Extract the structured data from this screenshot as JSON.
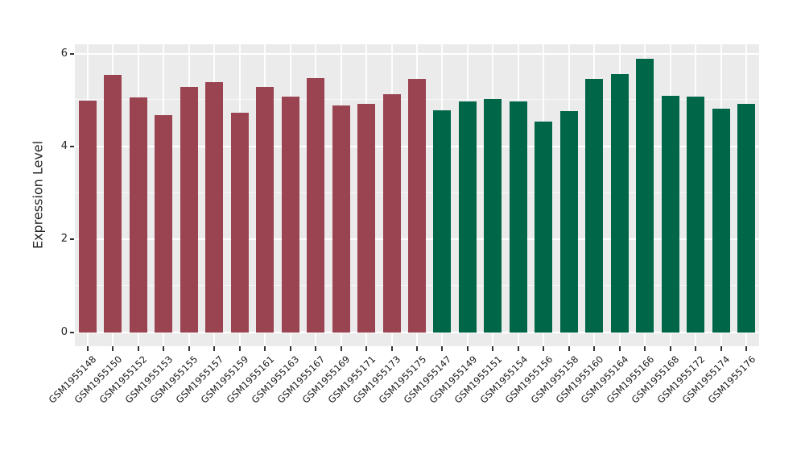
{
  "chart_data": {
    "type": "bar",
    "title": "",
    "xlabel": "",
    "ylabel": "Expression Level",
    "yticks": [
      0,
      2,
      4,
      6
    ],
    "yticks_minor": [
      1,
      3,
      5
    ],
    "ylim": [
      -0.3,
      6.2
    ],
    "grid": true,
    "legend": false,
    "panel_bg": "#EBEBEB",
    "gridline_color": "#FFFFFF",
    "group_colors": {
      "group1": "#9A4451",
      "group2": "#006648"
    },
    "bars": [
      {
        "label": "GSM1955148",
        "value": 4.98,
        "group": "group1"
      },
      {
        "label": "GSM1955150",
        "value": 5.54,
        "group": "group1"
      },
      {
        "label": "GSM1955152",
        "value": 5.06,
        "group": "group1"
      },
      {
        "label": "GSM1955153",
        "value": 4.68,
        "group": "group1"
      },
      {
        "label": "GSM1955155",
        "value": 5.28,
        "group": "group1"
      },
      {
        "label": "GSM1955157",
        "value": 5.38,
        "group": "group1"
      },
      {
        "label": "GSM1955159",
        "value": 4.72,
        "group": "group1"
      },
      {
        "label": "GSM1955161",
        "value": 5.29,
        "group": "group1"
      },
      {
        "label": "GSM1955163",
        "value": 5.07,
        "group": "group1"
      },
      {
        "label": "GSM1955167",
        "value": 5.48,
        "group": "group1"
      },
      {
        "label": "GSM1955169",
        "value": 4.88,
        "group": "group1"
      },
      {
        "label": "GSM1955171",
        "value": 4.92,
        "group": "group1"
      },
      {
        "label": "GSM1955173",
        "value": 5.13,
        "group": "group1"
      },
      {
        "label": "GSM1955175",
        "value": 5.46,
        "group": "group1"
      },
      {
        "label": "GSM1955147",
        "value": 4.78,
        "group": "group2"
      },
      {
        "label": "GSM1955149",
        "value": 4.97,
        "group": "group2"
      },
      {
        "label": "GSM1955151",
        "value": 5.02,
        "group": "group2"
      },
      {
        "label": "GSM1955154",
        "value": 4.97,
        "group": "group2"
      },
      {
        "label": "GSM1955156",
        "value": 4.54,
        "group": "group2"
      },
      {
        "label": "GSM1955158",
        "value": 4.77,
        "group": "group2"
      },
      {
        "label": "GSM1955160",
        "value": 5.46,
        "group": "group2"
      },
      {
        "label": "GSM1955164",
        "value": 5.56,
        "group": "group2"
      },
      {
        "label": "GSM1955166",
        "value": 5.89,
        "group": "group2"
      },
      {
        "label": "GSM1955168",
        "value": 5.09,
        "group": "group2"
      },
      {
        "label": "GSM1955172",
        "value": 5.08,
        "group": "group2"
      },
      {
        "label": "GSM1955174",
        "value": 4.82,
        "group": "group2"
      },
      {
        "label": "GSM1955176",
        "value": 4.91,
        "group": "group2"
      }
    ]
  }
}
